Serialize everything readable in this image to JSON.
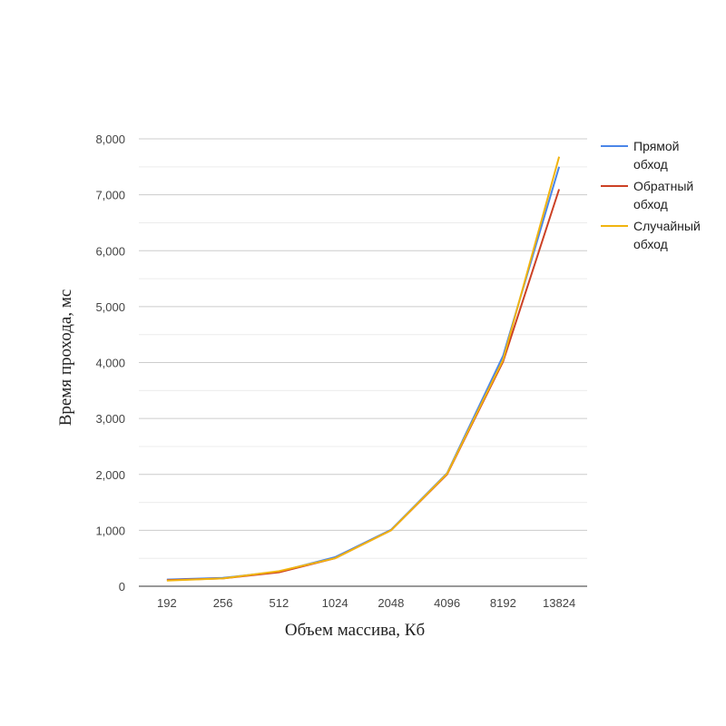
{
  "chart_data": {
    "type": "line",
    "categories": [
      "192",
      "256",
      "512",
      "1024",
      "2048",
      "4096",
      "8192",
      "13824"
    ],
    "xlabel": "Объем массива, Кб",
    "ylabel": "Время прохода, мс",
    "ylim": [
      0,
      8000
    ],
    "yticks": [
      "0",
      "1,000",
      "2,000",
      "3,000",
      "4,000",
      "5,000",
      "6,000",
      "7,000",
      "8,000"
    ],
    "grid": true,
    "legend_position": "right",
    "series": [
      {
        "name_lines": [
          "Прямой",
          "обход"
        ],
        "color": "#4a86e8",
        "values": [
          120,
          150,
          260,
          520,
          1010,
          2020,
          4120,
          7500
        ]
      },
      {
        "name_lines": [
          "Обратный",
          "обход"
        ],
        "color": "#cc4125",
        "values": [
          110,
          140,
          250,
          500,
          1000,
          2000,
          4020,
          7100
        ]
      },
      {
        "name_lines": [
          "Случайный",
          "обход"
        ],
        "color": "#f1b40f",
        "values": [
          100,
          140,
          270,
          500,
          1000,
          2010,
          4050,
          7680
        ]
      }
    ]
  }
}
